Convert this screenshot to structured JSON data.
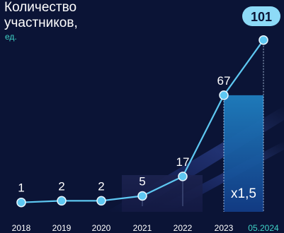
{
  "chart_data": {
    "type": "line",
    "title_line1": "Количество",
    "title_line2": "участников,",
    "unit": "ед.",
    "categories": [
      "2018",
      "2019",
      "2020",
      "2021",
      "2022",
      "2023",
      "05.2024"
    ],
    "values": [
      1,
      2,
      2,
      5,
      17,
      67,
      101
    ],
    "value_labels": [
      "1",
      "2",
      "2",
      "5",
      "17",
      "67",
      "101"
    ],
    "highlight_label": "x1,5",
    "colors": {
      "background": "#0b1436",
      "line": "#5ec8f2",
      "point": "#5ec8f2",
      "highlight_category": "#3fd3c7",
      "badge": "#8ddaf7"
    }
  }
}
